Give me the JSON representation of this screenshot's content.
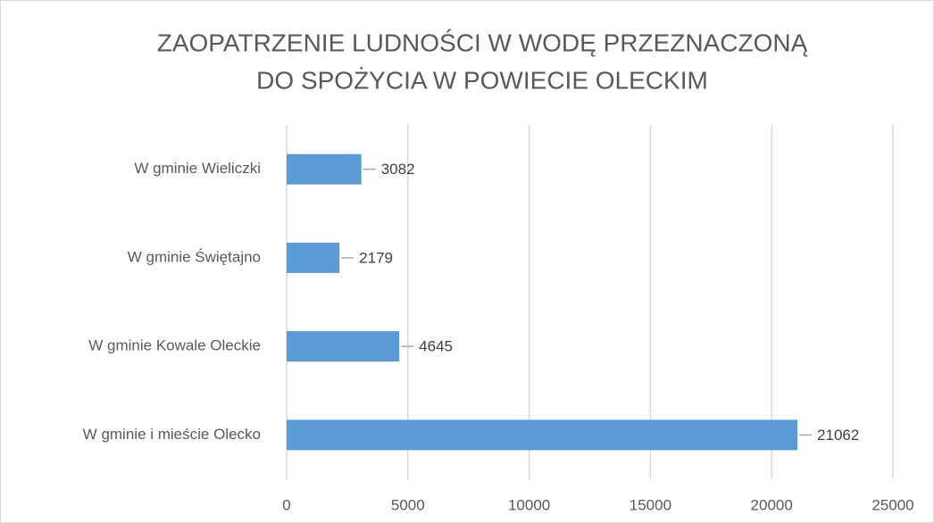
{
  "chart_data": {
    "type": "barh",
    "title": [
      "ZAOPATRZENIE LUDNOŚCI  W WODĘ PRZEZNACZONĄ",
      "DO SPOŻYCIA W POWIECIE OLECKIM"
    ],
    "categories": [
      "W gminie Wieliczki",
      "W gminie Świętajno",
      "W gminie Kowale Oleckie",
      "W gminie i mieście Olecko"
    ],
    "values": [
      3082,
      2179,
      4645,
      21062
    ],
    "color": "#5b9bd5",
    "xlim": [
      0,
      25000
    ],
    "xticks": [
      0,
      5000,
      10000,
      15000,
      20000,
      25000
    ],
    "grid": true
  }
}
